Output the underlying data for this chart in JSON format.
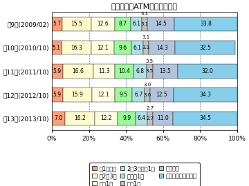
{
  "title": "《コンビニATMの利用頻度》",
  "rows": [
    {
      "label": "第13回(2013/10)",
      "values": [
        5.7,
        15.5,
        12.6,
        8.7,
        6.1,
        3.1,
        14.5,
        33.8
      ]
    },
    {
      "label": "第12回(2012/10)",
      "values": [
        5.1,
        16.3,
        12.1,
        9.6,
        6.1,
        3.1,
        14.3,
        32.5
      ]
    },
    {
      "label": "第11回(2011/10)",
      "values": [
        5.9,
        16.6,
        11.3,
        10.4,
        6.8,
        3.5,
        13.5,
        32.0
      ]
    },
    {
      "label": "第10回(2010/10)",
      "values": [
        5.9,
        15.9,
        12.1,
        9.5,
        6.7,
        3.0,
        12.5,
        34.3
      ]
    },
    {
      "label": "第9回(2009/02)",
      "values": [
        7.0,
        16.2,
        12.2,
        9.9,
        6.4,
        2.7,
        11.0,
        34.5
      ]
    }
  ],
  "colors": [
    "#FFA07A",
    "#FFFACD",
    "#FFFFE0",
    "#98FB98",
    "#B0E0E6",
    "#C0C0C0",
    "#B0C4DE",
    "#87CEEB"
  ],
  "legend_labels": [
    "週1回以上",
    "月2～3回",
    "月に1回",
    "2～3ヶ月に1回",
    "半年に1回",
    "年に1回",
    "それ以下",
    "利用したことがない"
  ],
  "xlabel_ticks": [
    "0%",
    "20%",
    "40%",
    "60%",
    "80%",
    "100%"
  ],
  "xlabel_vals": [
    0,
    20,
    40,
    60,
    80,
    100
  ],
  "bar_height": 0.6,
  "label_fontsize": 5.5,
  "title_fontsize": 8,
  "ytick_fontsize": 6.5,
  "xtick_fontsize": 6.5,
  "legend_fontsize": 6
}
